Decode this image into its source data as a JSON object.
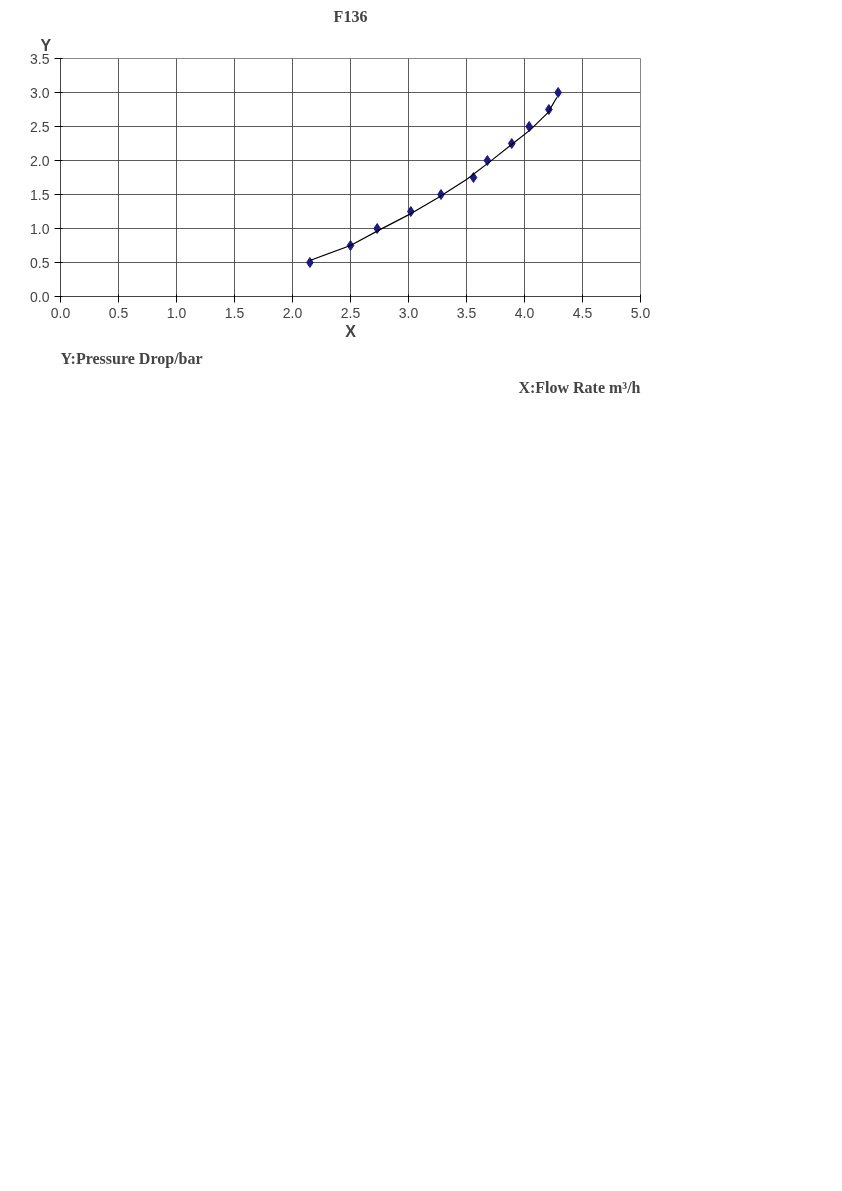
{
  "chart_data": {
    "type": "scatter",
    "title": "F136",
    "xlabel": "X",
    "ylabel": "Y",
    "annotations": [
      "Y:Pressure Drop/bar",
      "X:Flow Rate m³/h"
    ],
    "xlim": [
      0,
      5
    ],
    "ylim": [
      0,
      3.5
    ],
    "xticks": [
      {
        "value": 0,
        "label": "0.0"
      },
      {
        "value": 0.5,
        "label": "0.5"
      },
      {
        "value": 1,
        "label": "1.0"
      },
      {
        "value": 1.5,
        "label": "1.5"
      },
      {
        "value": 2,
        "label": "2.0"
      },
      {
        "value": 2.5,
        "label": "2.5"
      },
      {
        "value": 3,
        "label": "3.0"
      },
      {
        "value": 3.5,
        "label": "3.5"
      },
      {
        "value": 4,
        "label": "4.0"
      },
      {
        "value": 4.5,
        "label": "4.5"
      },
      {
        "value": 5,
        "label": "5.0"
      }
    ],
    "yticks": [
      {
        "value": 0,
        "label": "0.0"
      },
      {
        "value": 0.5,
        "label": "0.5"
      },
      {
        "value": 1,
        "label": "1.0"
      },
      {
        "value": 1.5,
        "label": "1.5"
      },
      {
        "value": 2,
        "label": "2.0"
      },
      {
        "value": 2.5,
        "label": "2.5"
      },
      {
        "value": 3,
        "label": "3.0"
      },
      {
        "value": 3.5,
        "label": "3.5"
      }
    ],
    "grid": true,
    "series": [
      {
        "marker": "diamond",
        "color": "#1a1a8c",
        "x": [
          2.15,
          2.5,
          2.73,
          3.02,
          3.28,
          3.56,
          3.68,
          3.89,
          4.04,
          4.21,
          4.29
        ],
        "values": [
          0.5,
          0.75,
          1.0,
          1.25,
          1.5,
          1.75,
          2.0,
          2.25,
          2.5,
          2.75,
          3.0
        ]
      },
      {
        "type": "line",
        "marker": "none",
        "color": "#000000",
        "line_style": "solid",
        "x": [
          2.15,
          2.5,
          2.75,
          3.0,
          3.25,
          3.5,
          3.7,
          3.9,
          4.05,
          4.2,
          4.28
        ],
        "values": [
          0.53,
          0.75,
          0.98,
          1.2,
          1.45,
          1.72,
          1.98,
          2.25,
          2.45,
          2.7,
          2.93
        ]
      }
    ]
  }
}
